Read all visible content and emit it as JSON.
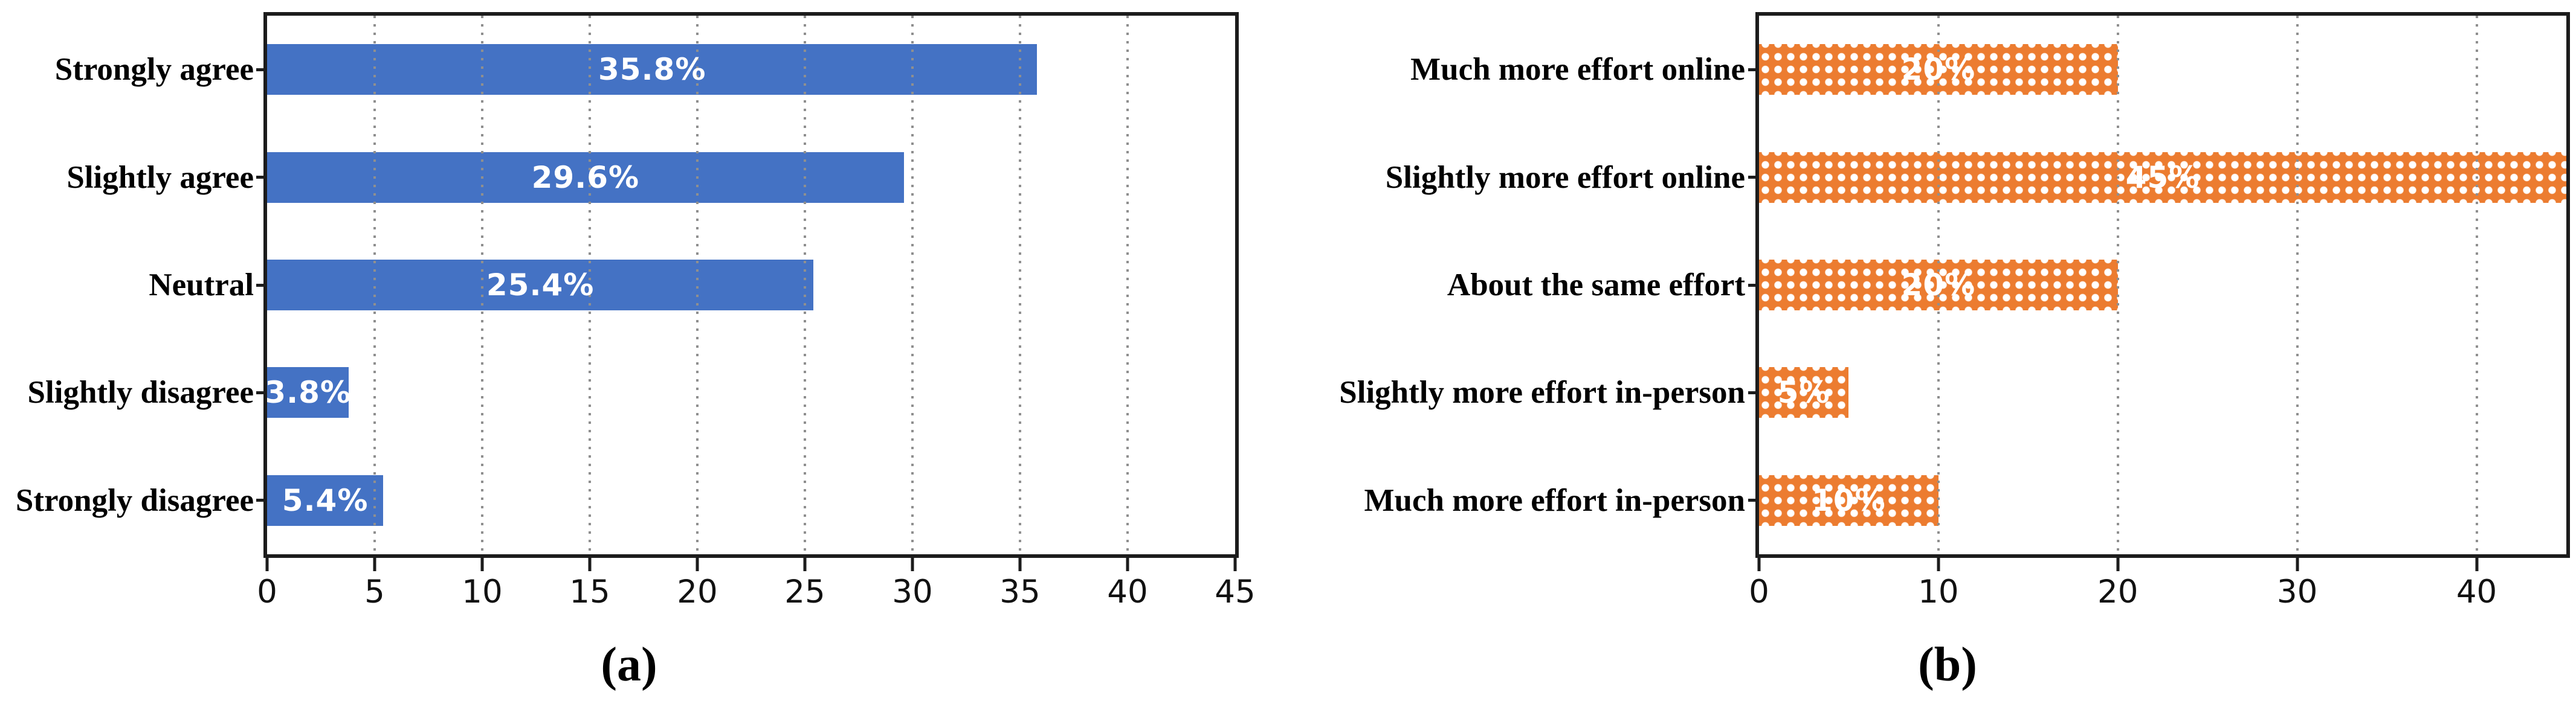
{
  "figure": {
    "background": "#ffffff",
    "grid_color": "#8f8f8f",
    "spine_color": "#1c1c1c",
    "value_label_color": "#ffffff"
  },
  "chart_data": [
    {
      "type": "bar",
      "orientation": "horizontal",
      "panel_caption": "(a)",
      "categories": [
        "Strongly agree",
        "Slightly agree",
        "Neutral",
        "Slightly disagree",
        "Strongly disagree"
      ],
      "values": [
        35.8,
        29.6,
        25.4,
        3.8,
        5.4
      ],
      "bar_labels": [
        "35.8%",
        "29.6%",
        "25.4%",
        "3.8%",
        "5.4%"
      ],
      "xlim": [
        0,
        45
      ],
      "xticks": [
        0,
        5,
        10,
        15,
        20,
        25,
        30,
        35,
        40,
        45
      ],
      "bar_color": "#4472C4",
      "bar_pattern": "solid",
      "grid": "vertical-dotted",
      "legend": "none",
      "title": "",
      "xlabel": "",
      "ylabel": ""
    },
    {
      "type": "bar",
      "orientation": "horizontal",
      "panel_caption": "(b)",
      "categories": [
        "Much more effort online",
        "Slightly more effort online",
        "About the same effort",
        "Slightly more effort in-person",
        "Much more effort in-person"
      ],
      "values": [
        20,
        45,
        20,
        5,
        10
      ],
      "bar_labels": [
        "20%",
        "45%",
        "20%",
        "5%",
        "10%"
      ],
      "xlim": [
        0,
        45
      ],
      "xticks": [
        0,
        10,
        20,
        30,
        40
      ],
      "bar_color": "#EC7C30",
      "bar_pattern": "white-dots",
      "grid": "vertical-dotted",
      "legend": "none",
      "title": "",
      "xlabel": "",
      "ylabel": ""
    }
  ]
}
